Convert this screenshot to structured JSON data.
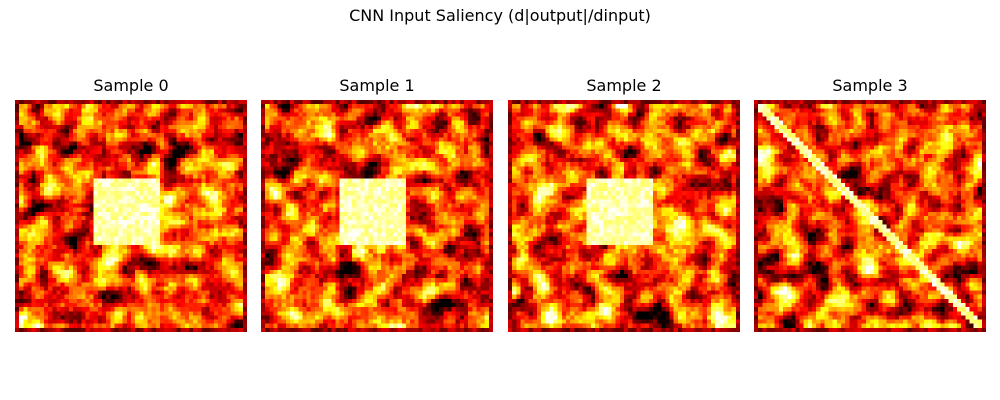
{
  "title": "CNN Input Saliency (d|output|/dinput)",
  "chart_data": [
    {
      "type": "heatmap",
      "title": "Sample 0",
      "colormap": "hot",
      "grid_size": 56,
      "features": [
        {
          "kind": "square",
          "row_start": 19,
          "row_end": 34,
          "col_start": 19,
          "col_end": 34,
          "intensity": "high"
        }
      ],
      "border": "dark",
      "axes_visible": false
    },
    {
      "type": "heatmap",
      "title": "Sample 1",
      "colormap": "hot",
      "grid_size": 56,
      "features": [
        {
          "kind": "square",
          "row_start": 19,
          "row_end": 34,
          "col_start": 19,
          "col_end": 34,
          "intensity": "high"
        }
      ],
      "border": "dark",
      "axes_visible": false
    },
    {
      "type": "heatmap",
      "title": "Sample 2",
      "colormap": "hot",
      "grid_size": 56,
      "features": [
        {
          "kind": "square",
          "row_start": 19,
          "row_end": 34,
          "col_start": 19,
          "col_end": 34,
          "intensity": "high"
        }
      ],
      "border": "dark",
      "axes_visible": false
    },
    {
      "type": "heatmap",
      "title": "Sample 3",
      "colormap": "hot",
      "grid_size": 56,
      "features": [
        {
          "kind": "diagonal",
          "direction": "top-left to bottom-right",
          "intensity": "high"
        }
      ],
      "border": "dark",
      "axes_visible": false
    }
  ]
}
